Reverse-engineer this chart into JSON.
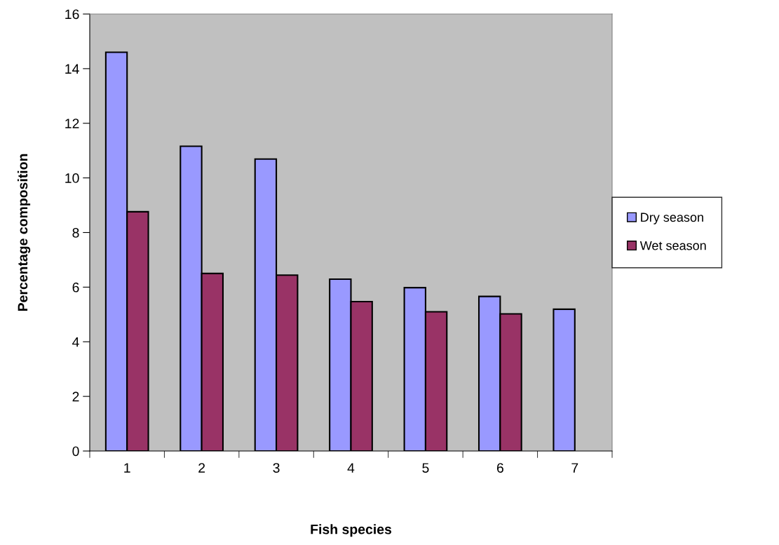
{
  "chart_data": {
    "type": "bar",
    "xlabel": "Fish species",
    "ylabel": "Percentage composition",
    "categories": [
      "1",
      "2",
      "3",
      "4",
      "5",
      "6",
      "7"
    ],
    "series": [
      {
        "name": "Dry season",
        "color": "#9999ff",
        "values": [
          14.6,
          11.16,
          10.69,
          6.29,
          5.98,
          5.66,
          5.19
        ]
      },
      {
        "name": "Wet season",
        "color": "#993366",
        "values": [
          8.76,
          6.5,
          6.44,
          5.47,
          5.1,
          5.02,
          null
        ]
      }
    ],
    "ylim": [
      0,
      16
    ],
    "yticks": [
      0,
      2,
      4,
      6,
      8,
      10,
      12,
      14,
      16
    ],
    "grid": false,
    "legend": "right"
  }
}
